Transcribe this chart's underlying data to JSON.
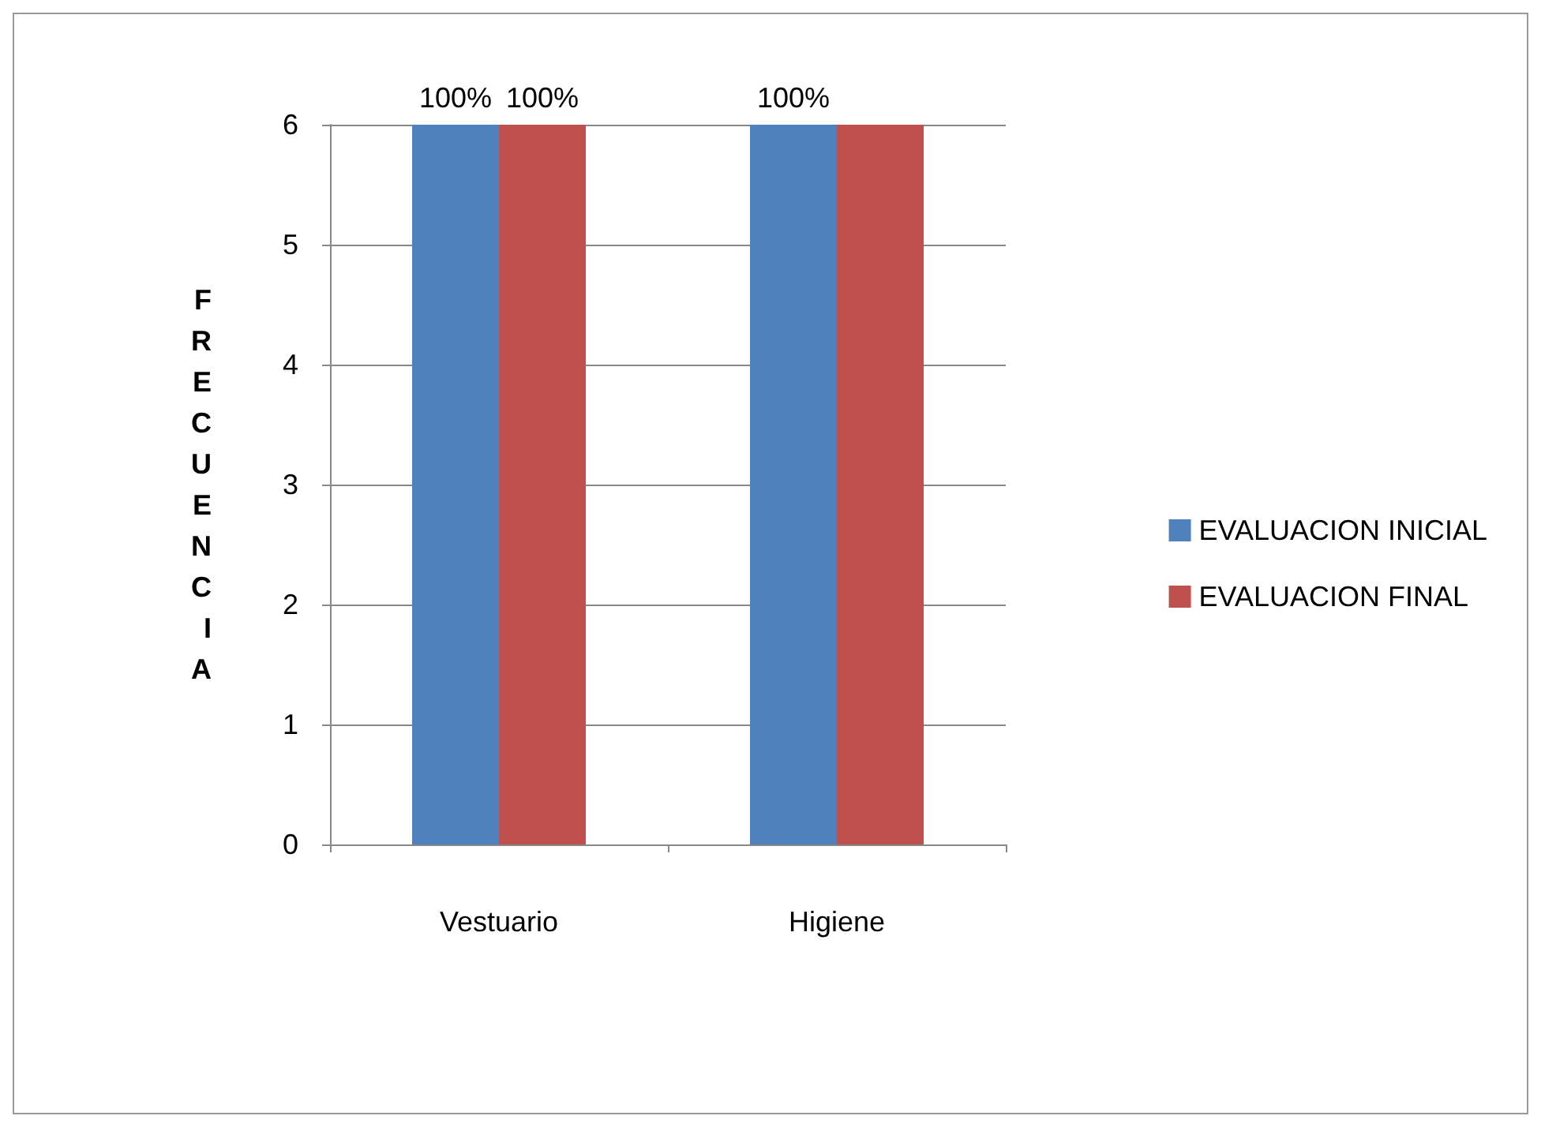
{
  "chart_data": {
    "type": "bar",
    "ylabel": "FRECUENCIA",
    "categories": [
      "Vestuario",
      "Higiene"
    ],
    "series": [
      {
        "name": "EVALUACION INICIAL",
        "color": "#4f81bd",
        "values": [
          6,
          6
        ]
      },
      {
        "name": "EVALUACION FINAL",
        "color": "#c0504d",
        "values": [
          6,
          6
        ]
      }
    ],
    "annotations": [
      {
        "text": "100%",
        "x": "Vestuario",
        "y": 6
      },
      {
        "text": "100%",
        "x": "Vestuario",
        "y": 6
      },
      {
        "text": "100%",
        "x": "Higiene",
        "y": 6
      }
    ],
    "ylim": [
      0,
      6
    ],
    "yticks": [
      0,
      1,
      2,
      3,
      4,
      5,
      6
    ],
    "grid": "y",
    "legend": "right"
  }
}
